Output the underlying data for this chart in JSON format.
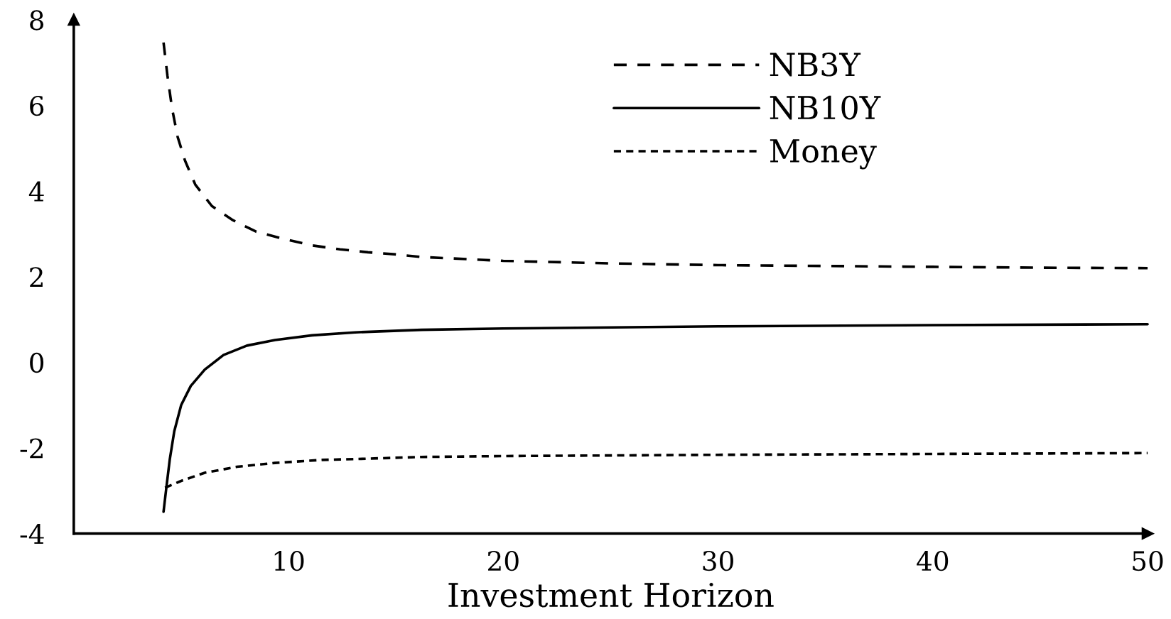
{
  "chart_data": {
    "type": "line",
    "xlabel": "Investment Horizon",
    "xlim": [
      0,
      50
    ],
    "xticks": [
      10,
      20,
      30,
      40,
      50
    ],
    "ylim": [
      -4,
      8
    ],
    "yticks": [
      -4,
      -2,
      0,
      2,
      4,
      6,
      8
    ],
    "grid": false,
    "legend": "top right",
    "marker": "none",
    "series": [
      {
        "name": "NB3Y",
        "color": "#000000",
        "line_style": "dashed",
        "x": [
          4.18,
          4.36,
          4.58,
          4.84,
          5.18,
          5.66,
          6.43,
          7.41,
          8.5,
          9.8,
          11.1,
          12.4,
          13.7,
          15.0,
          16.2,
          20,
          25,
          30,
          35,
          40,
          45,
          50
        ],
        "values": [
          7.47,
          6.7,
          5.92,
          5.26,
          4.71,
          4.15,
          3.65,
          3.32,
          3.05,
          2.88,
          2.73,
          2.64,
          2.57,
          2.52,
          2.46,
          2.37,
          2.31,
          2.27,
          2.25,
          2.23,
          2.21,
          2.2
        ]
      },
      {
        "name": "NB10Y",
        "color": "#000000",
        "line_style": "solid",
        "x": [
          4.18,
          4.31,
          4.47,
          4.68,
          5.0,
          5.45,
          6.1,
          6.97,
          8.06,
          9.37,
          11.1,
          13.1,
          16.2,
          20,
          30,
          40,
          50
        ],
        "values": [
          -3.49,
          -2.93,
          -2.27,
          -1.61,
          -1.0,
          -0.55,
          -0.17,
          0.17,
          0.39,
          0.52,
          0.63,
          0.7,
          0.76,
          0.79,
          0.84,
          0.87,
          0.89
        ]
      },
      {
        "name": "Money",
        "color": "#000000",
        "line_style": "dotted",
        "x": [
          4.25,
          5.0,
          6.1,
          7.6,
          9.37,
          11.55,
          13.7,
          16.2,
          20,
          30,
          40,
          50
        ],
        "values": [
          -2.93,
          -2.77,
          -2.58,
          -2.44,
          -2.35,
          -2.28,
          -2.25,
          -2.21,
          -2.19,
          -2.16,
          -2.14,
          -2.12
        ]
      }
    ]
  }
}
